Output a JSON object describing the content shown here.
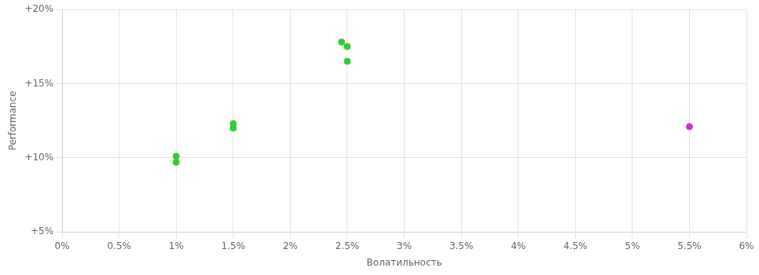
{
  "chart_data": {
    "type": "scatter",
    "xlabel": "Волатильность",
    "ylabel": "Performance",
    "series": [
      {
        "color": "#33cc33",
        "x": [
          0.01,
          0.01,
          0.015,
          0.015,
          0.0245,
          0.025,
          0.025
        ],
        "values": [
          0.101,
          0.097,
          0.123,
          0.12,
          0.178,
          0.175,
          0.165
        ]
      },
      {
        "color": "#cc33cc",
        "x": [
          0.055
        ],
        "values": [
          0.121
        ]
      }
    ],
    "xlim": [
      0.0,
      0.06
    ],
    "ylim": [
      0.05,
      0.2
    ],
    "xticks": [
      {
        "value": 0.0,
        "label": "0%"
      },
      {
        "value": 0.005,
        "label": "0.5%"
      },
      {
        "value": 0.01,
        "label": "1%"
      },
      {
        "value": 0.015,
        "label": "1.5%"
      },
      {
        "value": 0.02,
        "label": "2%"
      },
      {
        "value": 0.025,
        "label": "2.5%"
      },
      {
        "value": 0.03,
        "label": "3%"
      },
      {
        "value": 0.035,
        "label": "3.5%"
      },
      {
        "value": 0.04,
        "label": "4%"
      },
      {
        "value": 0.045,
        "label": "4.5%"
      },
      {
        "value": 0.05,
        "label": "5%"
      },
      {
        "value": 0.055,
        "label": "5.5%"
      },
      {
        "value": 0.06,
        "label": "6%"
      }
    ],
    "yticks": [
      {
        "value": 0.05,
        "label": "+5%"
      },
      {
        "value": 0.1,
        "label": "+10%"
      },
      {
        "value": 0.15,
        "label": "+15%"
      },
      {
        "value": 0.2,
        "label": "+20%"
      }
    ],
    "grid": true
  }
}
